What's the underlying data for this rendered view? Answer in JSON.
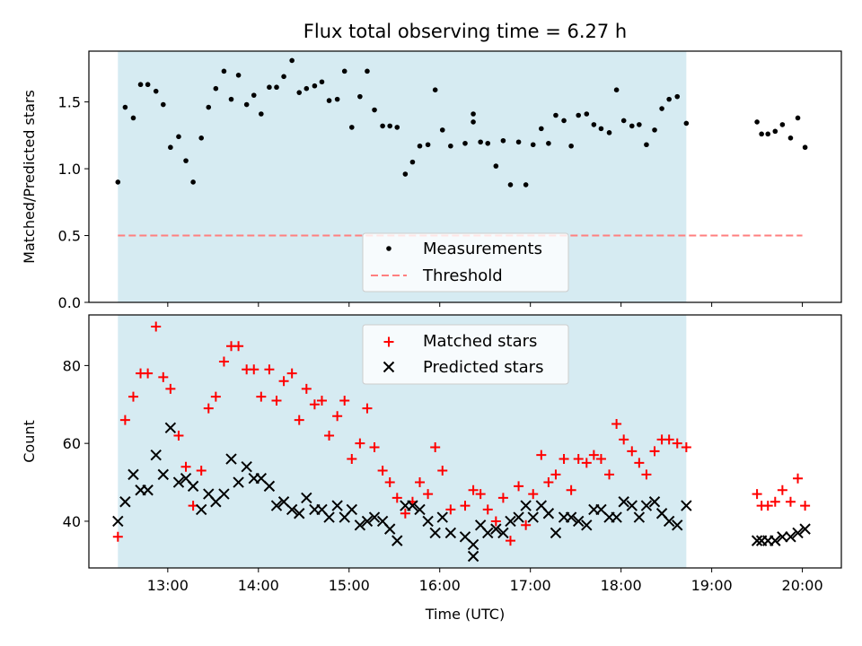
{
  "title": "Flux total observing time = 6.27 h",
  "colors": {
    "shade": "#add8e6",
    "measurement": "#000000",
    "threshold": "#ff7f7f",
    "matched": "#ff0000",
    "predicted": "#000000"
  },
  "chart_data": [
    {
      "type": "scatter",
      "panel": "top",
      "xlabel": "",
      "ylabel": "Matched/Predicted stars",
      "ylim": [
        0.0,
        1.88
      ],
      "yticks": [
        "0.0",
        "0.5",
        "1.0",
        "1.5"
      ],
      "ytick_values": [
        0.0,
        0.5,
        1.0,
        1.5
      ],
      "x_unit": "hours UTC",
      "xlim": [
        12.13,
        20.43
      ],
      "shaded_interval": [
        12.45,
        18.72
      ],
      "legend": {
        "placement": "lower center",
        "entries": [
          "Measurements",
          "Threshold"
        ]
      },
      "threshold": {
        "name": "Threshold",
        "value": 0.5,
        "x_range": [
          12.45,
          20.0
        ]
      },
      "series": [
        {
          "name": "Measurements",
          "points": [
            [
              12.45,
              0.9
            ],
            [
              12.53,
              1.46
            ],
            [
              12.62,
              1.38
            ],
            [
              12.7,
              1.63
            ],
            [
              12.78,
              1.63
            ],
            [
              12.87,
              1.58
            ],
            [
              12.95,
              1.48
            ],
            [
              13.03,
              1.16
            ],
            [
              13.12,
              1.24
            ],
            [
              13.2,
              1.06
            ],
            [
              13.28,
              0.9
            ],
            [
              13.37,
              1.23
            ],
            [
              13.45,
              1.46
            ],
            [
              13.53,
              1.6
            ],
            [
              13.62,
              1.73
            ],
            [
              13.7,
              1.52
            ],
            [
              13.78,
              1.7
            ],
            [
              13.87,
              1.48
            ],
            [
              13.95,
              1.55
            ],
            [
              14.03,
              1.41
            ],
            [
              14.12,
              1.61
            ],
            [
              14.2,
              1.61
            ],
            [
              14.28,
              1.69
            ],
            [
              14.37,
              1.81
            ],
            [
              14.45,
              1.57
            ],
            [
              14.53,
              1.6
            ],
            [
              14.62,
              1.62
            ],
            [
              14.7,
              1.65
            ],
            [
              14.78,
              1.51
            ],
            [
              14.87,
              1.52
            ],
            [
              14.95,
              1.73
            ],
            [
              15.03,
              1.31
            ],
            [
              15.12,
              1.54
            ],
            [
              15.2,
              1.73
            ],
            [
              15.28,
              1.44
            ],
            [
              15.37,
              1.32
            ],
            [
              15.45,
              1.32
            ],
            [
              15.53,
              1.31
            ],
            [
              15.62,
              0.96
            ],
            [
              15.7,
              1.05
            ],
            [
              15.78,
              1.17
            ],
            [
              15.87,
              1.18
            ],
            [
              15.95,
              1.59
            ],
            [
              16.03,
              1.29
            ],
            [
              16.12,
              1.17
            ],
            [
              16.28,
              1.19
            ],
            [
              16.37,
              1.41
            ],
            [
              16.37,
              1.35
            ],
            [
              16.45,
              1.2
            ],
            [
              16.53,
              1.19
            ],
            [
              16.62,
              1.02
            ],
            [
              16.7,
              1.21
            ],
            [
              16.78,
              0.88
            ],
            [
              16.87,
              1.2
            ],
            [
              16.95,
              0.88
            ],
            [
              17.03,
              1.18
            ],
            [
              17.12,
              1.3
            ],
            [
              17.2,
              1.19
            ],
            [
              17.28,
              1.4
            ],
            [
              17.37,
              1.36
            ],
            [
              17.45,
              1.17
            ],
            [
              17.53,
              1.4
            ],
            [
              17.62,
              1.41
            ],
            [
              17.7,
              1.33
            ],
            [
              17.78,
              1.3
            ],
            [
              17.87,
              1.27
            ],
            [
              17.95,
              1.59
            ],
            [
              18.03,
              1.36
            ],
            [
              18.12,
              1.32
            ],
            [
              18.2,
              1.33
            ],
            [
              18.28,
              1.18
            ],
            [
              18.37,
              1.29
            ],
            [
              18.45,
              1.45
            ],
            [
              18.53,
              1.52
            ],
            [
              18.62,
              1.54
            ],
            [
              18.72,
              1.34
            ],
            [
              19.5,
              1.35
            ],
            [
              19.55,
              1.26
            ],
            [
              19.62,
              1.26
            ],
            [
              19.7,
              1.28
            ],
            [
              19.78,
              1.33
            ],
            [
              19.87,
              1.23
            ],
            [
              19.95,
              1.38
            ],
            [
              20.03,
              1.16
            ]
          ]
        }
      ]
    },
    {
      "type": "scatter",
      "panel": "bottom",
      "xlabel": "Time (UTC)",
      "ylabel": "Count",
      "ylim": [
        28,
        93
      ],
      "yticks": [
        "40",
        "60",
        "80"
      ],
      "ytick_values": [
        40,
        60,
        80
      ],
      "x_unit": "hours UTC",
      "xlim": [
        12.13,
        20.43
      ],
      "xticks": [
        "13:00",
        "14:00",
        "15:00",
        "16:00",
        "17:00",
        "18:00",
        "19:00",
        "20:00"
      ],
      "xtick_values": [
        13,
        14,
        15,
        16,
        17,
        18,
        19,
        20
      ],
      "shaded_interval": [
        12.45,
        18.72
      ],
      "legend": {
        "placement": "upper center",
        "entries": [
          "Matched stars",
          "Predicted stars"
        ]
      },
      "series": [
        {
          "name": "Matched stars",
          "points": [
            [
              12.45,
              36
            ],
            [
              12.53,
              66
            ],
            [
              12.62,
              72
            ],
            [
              12.7,
              78
            ],
            [
              12.78,
              78
            ],
            [
              12.87,
              90
            ],
            [
              12.95,
              77
            ],
            [
              13.03,
              74
            ],
            [
              13.12,
              62
            ],
            [
              13.2,
              54
            ],
            [
              13.28,
              44
            ],
            [
              13.37,
              53
            ],
            [
              13.45,
              69
            ],
            [
              13.53,
              72
            ],
            [
              13.62,
              81
            ],
            [
              13.7,
              85
            ],
            [
              13.78,
              85
            ],
            [
              13.87,
              79
            ],
            [
              13.95,
              79
            ],
            [
              14.03,
              72
            ],
            [
              14.12,
              79
            ],
            [
              14.2,
              71
            ],
            [
              14.28,
              76
            ],
            [
              14.37,
              78
            ],
            [
              14.45,
              66
            ],
            [
              14.53,
              74
            ],
            [
              14.62,
              70
            ],
            [
              14.7,
              71
            ],
            [
              14.78,
              62
            ],
            [
              14.87,
              67
            ],
            [
              14.95,
              71
            ],
            [
              15.03,
              56
            ],
            [
              15.12,
              60
            ],
            [
              15.2,
              69
            ],
            [
              15.28,
              59
            ],
            [
              15.37,
              53
            ],
            [
              15.45,
              50
            ],
            [
              15.53,
              46
            ],
            [
              15.62,
              42
            ],
            [
              15.7,
              45
            ],
            [
              15.78,
              50
            ],
            [
              15.87,
              47
            ],
            [
              15.95,
              59
            ],
            [
              16.03,
              53
            ],
            [
              16.12,
              43
            ],
            [
              16.28,
              44
            ],
            [
              16.37,
              48
            ],
            [
              16.45,
              47
            ],
            [
              16.53,
              43
            ],
            [
              16.62,
              40
            ],
            [
              16.7,
              46
            ],
            [
              16.78,
              35
            ],
            [
              16.87,
              49
            ],
            [
              16.95,
              39
            ],
            [
              17.03,
              47
            ],
            [
              17.12,
              57
            ],
            [
              17.2,
              50
            ],
            [
              17.28,
              52
            ],
            [
              17.37,
              56
            ],
            [
              17.45,
              48
            ],
            [
              17.53,
              56
            ],
            [
              17.62,
              55
            ],
            [
              17.7,
              57
            ],
            [
              17.78,
              56
            ],
            [
              17.87,
              52
            ],
            [
              17.95,
              65
            ],
            [
              18.03,
              61
            ],
            [
              18.12,
              58
            ],
            [
              18.2,
              55
            ],
            [
              18.28,
              52
            ],
            [
              18.37,
              58
            ],
            [
              18.45,
              61
            ],
            [
              18.53,
              61
            ],
            [
              18.62,
              60
            ],
            [
              18.72,
              59
            ],
            [
              19.5,
              47
            ],
            [
              19.55,
              44
            ],
            [
              19.62,
              44
            ],
            [
              19.7,
              45
            ],
            [
              19.78,
              48
            ],
            [
              19.87,
              45
            ],
            [
              19.95,
              51
            ],
            [
              20.03,
              44
            ]
          ]
        },
        {
          "name": "Predicted stars",
          "points": [
            [
              12.45,
              40
            ],
            [
              12.53,
              45
            ],
            [
              12.62,
              52
            ],
            [
              12.7,
              48
            ],
            [
              12.78,
              48
            ],
            [
              12.87,
              57
            ],
            [
              12.95,
              52
            ],
            [
              13.03,
              64
            ],
            [
              13.12,
              50
            ],
            [
              13.2,
              51
            ],
            [
              13.28,
              49
            ],
            [
              13.37,
              43
            ],
            [
              13.45,
              47
            ],
            [
              13.53,
              45
            ],
            [
              13.62,
              47
            ],
            [
              13.7,
              56
            ],
            [
              13.78,
              50
            ],
            [
              13.87,
              54
            ],
            [
              13.95,
              51
            ],
            [
              14.03,
              51
            ],
            [
              14.12,
              49
            ],
            [
              14.2,
              44
            ],
            [
              14.28,
              45
            ],
            [
              14.37,
              43
            ],
            [
              14.45,
              42
            ],
            [
              14.53,
              46
            ],
            [
              14.62,
              43
            ],
            [
              14.7,
              43
            ],
            [
              14.78,
              41
            ],
            [
              14.87,
              44
            ],
            [
              14.95,
              41
            ],
            [
              15.03,
              43
            ],
            [
              15.12,
              39
            ],
            [
              15.2,
              40
            ],
            [
              15.28,
              41
            ],
            [
              15.37,
              40
            ],
            [
              15.45,
              38
            ],
            [
              15.53,
              35
            ],
            [
              15.62,
              44
            ],
            [
              15.7,
              44
            ],
            [
              15.78,
              43
            ],
            [
              15.87,
              40
            ],
            [
              15.95,
              37
            ],
            [
              16.03,
              41
            ],
            [
              16.12,
              37
            ],
            [
              16.28,
              36
            ],
            [
              16.37,
              34
            ],
            [
              16.37,
              31
            ],
            [
              16.45,
              39
            ],
            [
              16.53,
              37
            ],
            [
              16.62,
              38
            ],
            [
              16.7,
              37
            ],
            [
              16.78,
              40
            ],
            [
              16.87,
              41
            ],
            [
              16.95,
              44
            ],
            [
              17.03,
              41
            ],
            [
              17.12,
              44
            ],
            [
              17.2,
              42
            ],
            [
              17.28,
              37
            ],
            [
              17.37,
              41
            ],
            [
              17.45,
              41
            ],
            [
              17.53,
              40
            ],
            [
              17.62,
              39
            ],
            [
              17.7,
              43
            ],
            [
              17.78,
              43
            ],
            [
              17.87,
              41
            ],
            [
              17.95,
              41
            ],
            [
              18.03,
              45
            ],
            [
              18.12,
              44
            ],
            [
              18.2,
              41
            ],
            [
              18.28,
              44
            ],
            [
              18.37,
              45
            ],
            [
              18.45,
              42
            ],
            [
              18.53,
              40
            ],
            [
              18.62,
              39
            ],
            [
              18.72,
              44
            ],
            [
              19.5,
              35
            ],
            [
              19.55,
              35
            ],
            [
              19.62,
              35
            ],
            [
              19.7,
              35
            ],
            [
              19.78,
              36
            ],
            [
              19.87,
              36
            ],
            [
              19.95,
              37
            ],
            [
              20.03,
              38
            ]
          ]
        }
      ]
    }
  ]
}
